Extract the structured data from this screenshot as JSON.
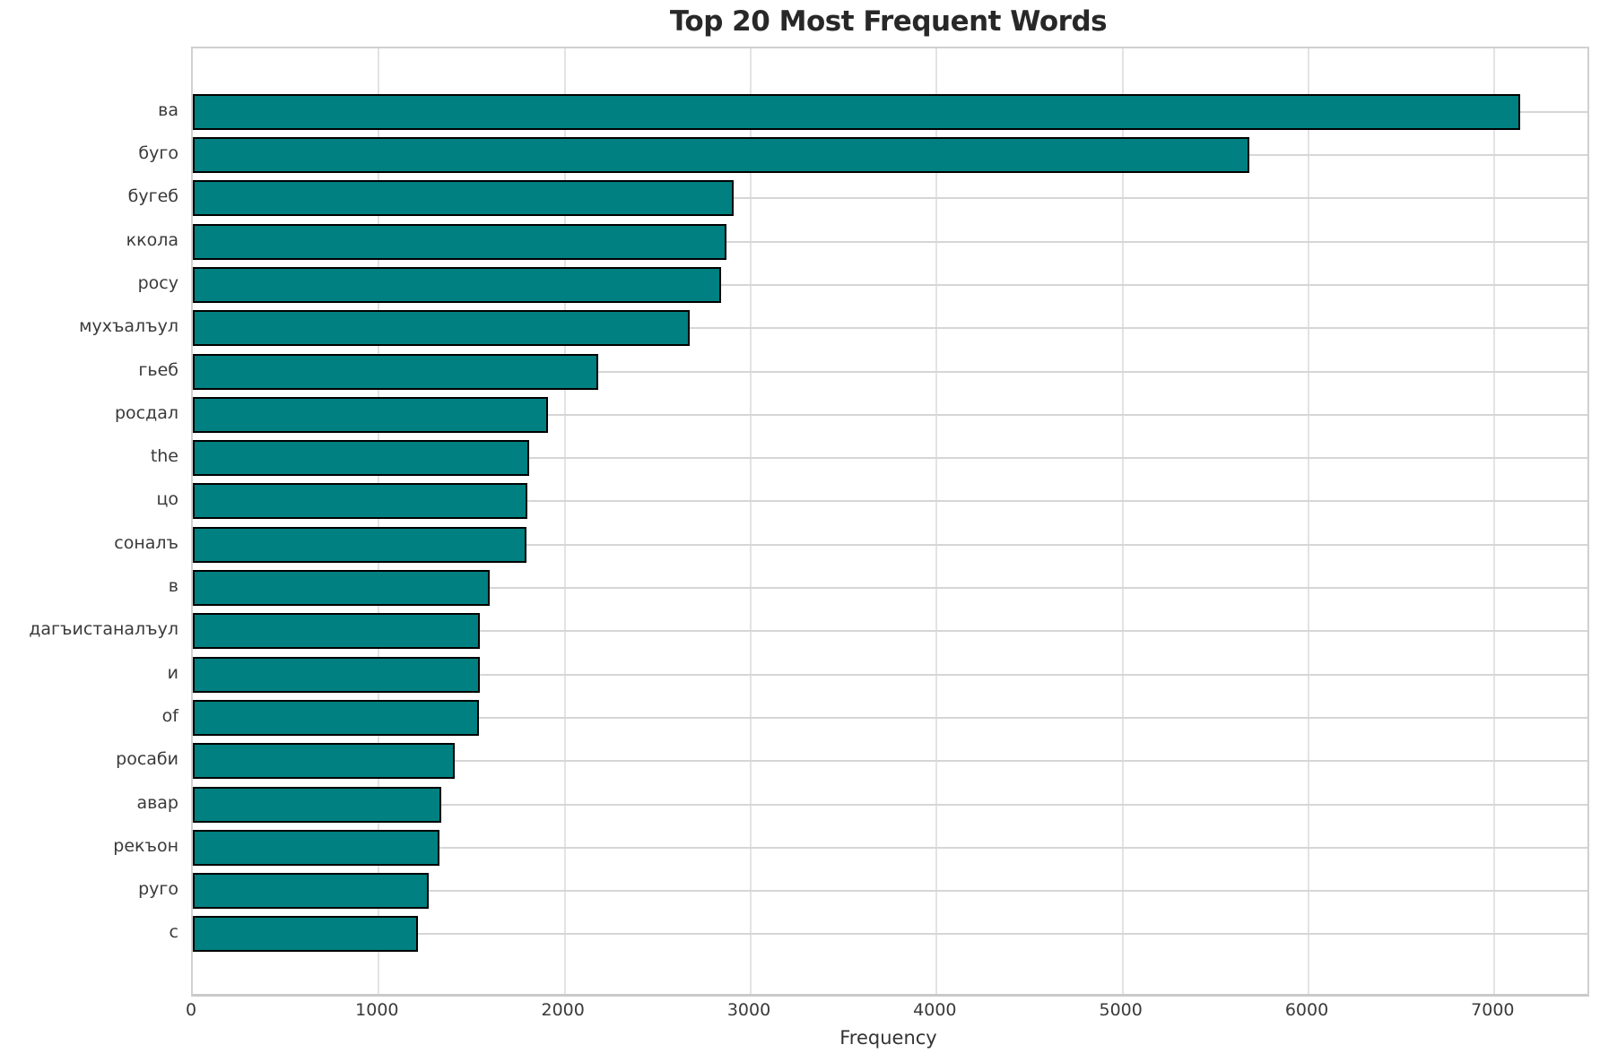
{
  "chart_data": {
    "type": "bar",
    "orientation": "horizontal",
    "title": "Top 20 Most Frequent Words",
    "xlabel": "Frequency",
    "ylabel": "",
    "categories": [
      "ва",
      "буго",
      "бугеб",
      "ккола",
      "росу",
      "мухъалъул",
      "гьеб",
      "росдал",
      "the",
      "цо",
      "соналъ",
      "в",
      "дагъистаналъул",
      "и",
      "of",
      "росаби",
      "авар",
      "рекъон",
      "руго",
      "с"
    ],
    "values": [
      7140,
      5680,
      2910,
      2870,
      2840,
      2670,
      2180,
      1910,
      1810,
      1800,
      1795,
      1595,
      1545,
      1542,
      1538,
      1410,
      1335,
      1325,
      1270,
      1210
    ],
    "xlim": [
      0,
      7500
    ],
    "xticks": [
      0,
      1000,
      2000,
      3000,
      4000,
      5000,
      6000,
      7000
    ],
    "grid": true,
    "legend": "none",
    "colors": {
      "bar_fill": "#008080",
      "bar_edge": "#000000",
      "grid_vertical": "#e3e3e3",
      "grid_horizontal": "#d6d6d6",
      "title_text": "#282828",
      "tick_text": "#3a3a3a",
      "background": "#ffffff"
    }
  }
}
